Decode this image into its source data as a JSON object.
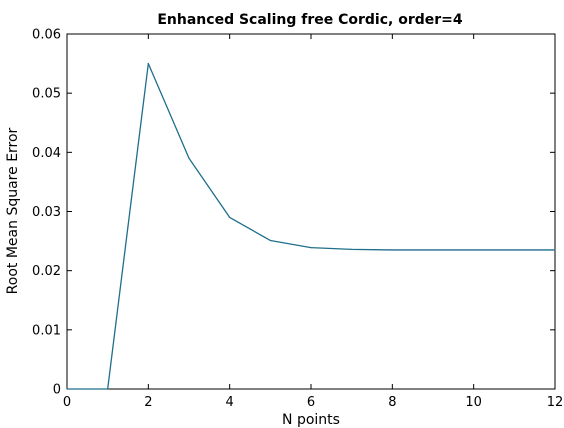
{
  "chart_data": {
    "type": "line",
    "title": "Enhanced Scaling free Cordic, order=4",
    "xlabel": "N points",
    "ylabel": "Root Mean Square Error",
    "xlim": [
      0,
      12
    ],
    "ylim": [
      0,
      0.06
    ],
    "xticks": [
      0,
      2,
      4,
      6,
      8,
      10,
      12
    ],
    "xtick_labels": [
      "0",
      "2",
      "4",
      "6",
      "8",
      "10",
      "12"
    ],
    "yticks": [
      0,
      0.01,
      0.02,
      0.03,
      0.04,
      0.05,
      0.06
    ],
    "ytick_labels": [
      "0",
      "0.01",
      "0.02",
      "0.03",
      "0.04",
      "0.05",
      "0.06"
    ],
    "grid": false,
    "series": [
      {
        "color": "#1f6e8c",
        "x": [
          0,
          1,
          2,
          3,
          4,
          5,
          6,
          7,
          8,
          9,
          10,
          11,
          12
        ],
        "y": [
          0,
          0,
          0.055,
          0.039,
          0.029,
          0.0251,
          0.0239,
          0.0236,
          0.0235,
          0.0235,
          0.0235,
          0.0235,
          0.0235
        ]
      }
    ]
  }
}
